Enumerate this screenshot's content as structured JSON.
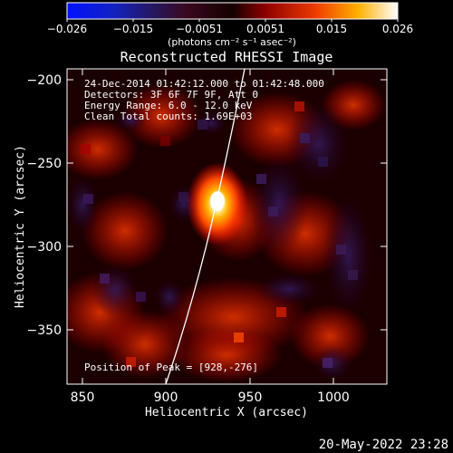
{
  "colorbar": {
    "ticks": [
      "−0.026",
      "−0.015",
      "−0.0051",
      "0.0051",
      "0.015",
      "0.026"
    ],
    "units": "(photons cm⁻² s⁻¹ asec⁻²)"
  },
  "plot": {
    "title": "Reconstructed RHESSI Image",
    "info_lines": [
      "24-Dec-2014 01:42:12.000 to 01:42:48.000",
      "Detectors: 3F 6F 7F 9F, Att 0",
      "Energy Range: 6.0 - 12.0 keV",
      "Clean    Total counts: 1.69E+03"
    ],
    "peak_label": "Position of Peak = [928,-276]",
    "x_label": "Heliocentric X (arcsec)",
    "y_label": "Heliocentric Y (arcsec)",
    "x_ticks": [
      "850",
      "900",
      "950",
      "1000"
    ],
    "y_ticks": [
      "−200",
      "−250",
      "−300",
      "−350"
    ],
    "timestamp": "20-May-2022 23:28"
  },
  "chart_data": {
    "type": "heatmap",
    "title": "Reconstructed RHESSI Image",
    "xlabel": "Heliocentric X (arcsec)",
    "ylabel": "Heliocentric Y (arcsec)",
    "colorbar_range": [
      -0.026,
      0.026
    ],
    "colorbar_ticks": [
      -0.026,
      -0.015,
      -0.0051,
      0.0051,
      0.015,
      0.026
    ],
    "peak": [
      928,
      -276
    ],
    "total_counts": "1.69E+03",
    "energy_range_keV": [
      6.0,
      12.0
    ],
    "time_range": [
      "24-Dec-2014 01:42:12.000",
      "01:42:48.000"
    ],
    "x_range": [
      835,
      1027
    ],
    "y_range": [
      -385,
      -193
    ],
    "xticks": [
      850,
      900,
      950,
      1000
    ],
    "yticks": [
      -200,
      -250,
      -300,
      -350
    ],
    "colormap": "red-temperature",
    "overlay": "solar limb arc"
  }
}
